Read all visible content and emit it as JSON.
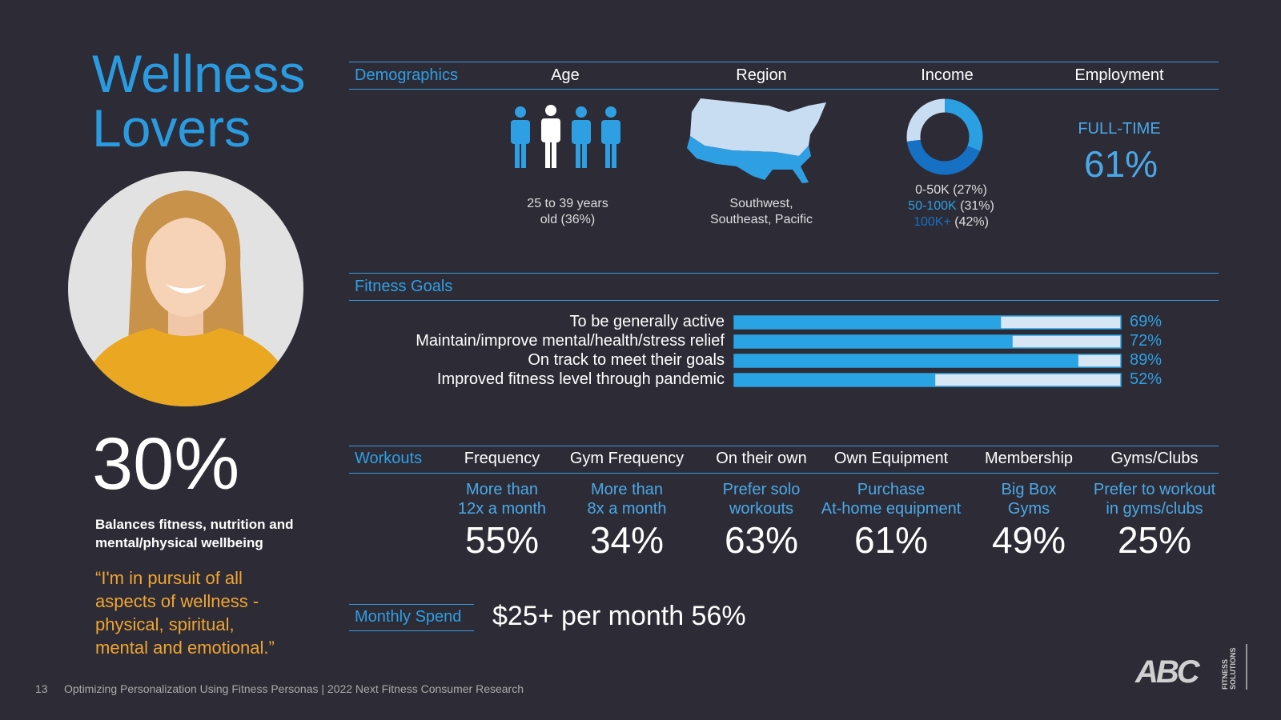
{
  "title": [
    "Wellness",
    "Lovers"
  ],
  "stat": {
    "value": "30%",
    "caption": [
      "Balances fitness, nutrition and",
      "mental/physical wellbeing"
    ]
  },
  "quote": [
    "“I'm in pursuit of all",
    "aspects of wellness -",
    "physical, spiritual,",
    "mental and emotional.”"
  ],
  "demographics": {
    "label": "Demographics",
    "age": {
      "heading": "Age",
      "text": [
        "25 to 39 years",
        "old (36%)"
      ]
    },
    "region": {
      "heading": "Region",
      "text": [
        "Southwest,",
        "Southeast, Pacific"
      ]
    },
    "income": {
      "heading": "Income",
      "segments": [
        {
          "label": "0-50K",
          "value": 27,
          "value_label": "(27%)",
          "color": "#c9ddf2"
        },
        {
          "label": "50-100K",
          "value": 31,
          "value_label": "(31%)",
          "color": "#2a9fe2"
        },
        {
          "label": "100K+",
          "value": 42,
          "value_label": "(42%)",
          "color": "#1670c4"
        }
      ]
    },
    "employment": {
      "heading": "Employment",
      "label": "FULL-TIME",
      "value": "61%"
    }
  },
  "fitness_goals": {
    "label": "Fitness Goals",
    "color": "#29a3e3",
    "track_color": "#d6e6f5",
    "items": [
      {
        "label": "To be generally active",
        "value": 69,
        "value_label": "69%"
      },
      {
        "label": "Maintain/improve mental/health/stress relief",
        "value": 72,
        "value_label": "72%"
      },
      {
        "label": "On track to meet their goals",
        "value": 89,
        "value_label": "89%"
      },
      {
        "label": "Improved fitness level through pandemic",
        "value": 52,
        "value_label": "52%"
      }
    ]
  },
  "workouts": {
    "label": "Workouts",
    "columns": [
      {
        "heading": "Frequency",
        "text": [
          "More than",
          "12x a month"
        ],
        "value": "55%"
      },
      {
        "heading": "Gym Frequency",
        "text": [
          "More than",
          "8x a month"
        ],
        "value": "34%"
      },
      {
        "heading": "On their own",
        "text": [
          "Prefer solo",
          "workouts"
        ],
        "value": "63%"
      },
      {
        "heading": "Own Equipment",
        "text": [
          "Purchase",
          "At-home equipment"
        ],
        "value": "61%"
      },
      {
        "heading": "Membership",
        "text": [
          "Big Box",
          "Gyms"
        ],
        "value": "49%"
      },
      {
        "heading": "Gyms/Clubs",
        "text": [
          "Prefer to workout",
          "in gyms/clubs"
        ],
        "value": "25%"
      }
    ]
  },
  "monthly_spend": {
    "label": "Monthly Spend",
    "text": "$25+ per month 56%"
  },
  "footer": {
    "page": "13",
    "text": "Optimizing Personalization Using Fitness Personas |  2022 Next Fitness Consumer Research"
  },
  "logo": {
    "brand": "ABC",
    "sub": [
      "FITNESS",
      "SOLUTIONS"
    ]
  }
}
